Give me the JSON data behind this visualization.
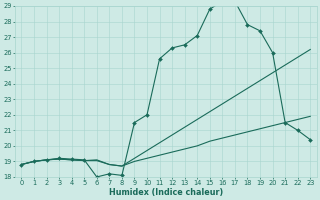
{
  "xlabel": "Humidex (Indice chaleur)",
  "x_values": [
    0,
    1,
    2,
    3,
    4,
    5,
    6,
    7,
    8,
    9,
    10,
    11,
    12,
    13,
    14,
    15,
    16,
    17,
    18,
    19,
    20,
    21,
    22,
    23
  ],
  "line1": [
    18.8,
    19.0,
    19.1,
    19.2,
    19.15,
    19.1,
    18.0,
    18.2,
    18.1,
    21.5,
    22.0,
    25.6,
    26.3,
    26.5,
    27.1,
    28.8,
    29.3,
    29.3,
    27.8,
    27.4,
    26.0,
    21.5,
    21.0,
    20.4
  ],
  "line2": [
    18.8,
    19.0,
    19.1,
    19.15,
    19.1,
    19.05,
    19.05,
    18.8,
    18.7,
    19.0,
    19.2,
    19.4,
    19.6,
    19.8,
    20.0,
    20.3,
    20.5,
    20.7,
    20.9,
    21.1,
    21.3,
    21.5,
    21.7,
    21.9
  ],
  "line3": [
    18.8,
    19.0,
    19.1,
    19.15,
    19.1,
    19.05,
    19.1,
    18.8,
    18.7,
    19.2,
    19.7,
    20.2,
    20.7,
    21.2,
    21.7,
    22.2,
    22.7,
    23.2,
    23.7,
    24.2,
    24.7,
    25.2,
    25.7,
    26.2
  ],
  "ylim": [
    18,
    29
  ],
  "xlim": [
    -0.5,
    23.5
  ],
  "yticks": [
    18,
    19,
    20,
    21,
    22,
    23,
    24,
    25,
    26,
    27,
    28,
    29
  ],
  "xticks": [
    0,
    1,
    2,
    3,
    4,
    5,
    6,
    7,
    8,
    9,
    10,
    11,
    12,
    13,
    14,
    15,
    16,
    17,
    18,
    19,
    20,
    21,
    22,
    23
  ],
  "line_color": "#1a6b5a",
  "bg_color": "#ceeae5",
  "grid_color": "#a8d5ce",
  "marker": "D",
  "marker_size": 2.0,
  "linewidth": 0.8,
  "tick_fontsize": 4.8,
  "xlabel_fontsize": 5.8
}
